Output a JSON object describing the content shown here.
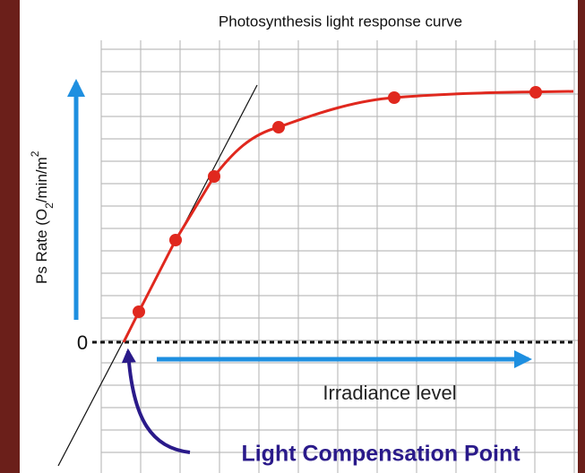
{
  "title": "Photosynthesis light response curve",
  "y_label": {
    "main": "Ps Rate  (O",
    "sub": "2",
    "mid": "/min/m",
    "sup": "2"
  },
  "zero_label": "0",
  "x_label": "Irradiance level",
  "annotation": "Light Compensation Point"
}
